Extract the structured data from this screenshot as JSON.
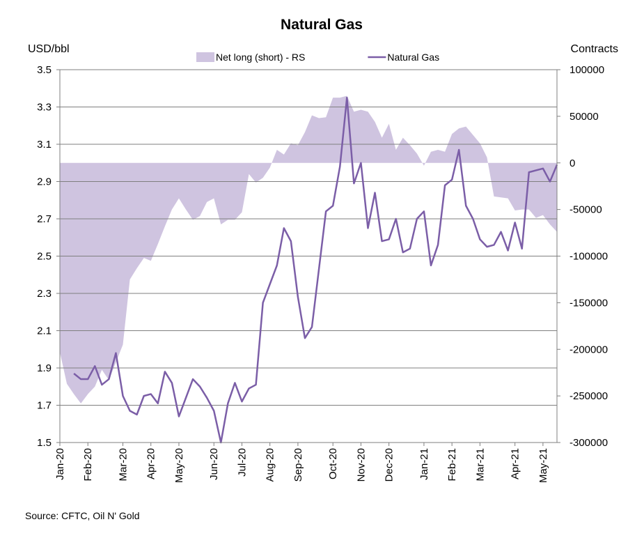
{
  "chart_data": {
    "type": "line",
    "title": "Natural Gas",
    "y_label": "USD/bbl",
    "y2_label": "Contracts",
    "source": "Source: CFTC, Oil N' Gold",
    "categories": [
      "Jan-20",
      null,
      null,
      null,
      "Feb-20",
      null,
      null,
      null,
      null,
      "Mar-20",
      null,
      null,
      null,
      "Apr-20",
      null,
      null,
      null,
      "May-20",
      null,
      null,
      null,
      null,
      "Jun-20",
      null,
      null,
      null,
      "Jul-20",
      null,
      null,
      null,
      "Aug-20",
      null,
      null,
      null,
      "Sep-20",
      null,
      null,
      null,
      null,
      "Oct-20",
      null,
      null,
      null,
      "Nov-20",
      null,
      null,
      null,
      "Dec-20",
      null,
      null,
      null,
      null,
      "Jan-21",
      null,
      null,
      null,
      "Feb-21",
      null,
      null,
      null,
      "Mar-21",
      null,
      null,
      null,
      null,
      "Apr-21",
      null,
      null,
      null,
      "May-21",
      null,
      null
    ],
    "series": [
      {
        "name": "Net long (short) - RS",
        "type": "area",
        "axis": "y2",
        "color": "#cfc4e0",
        "values": [
          -203000,
          -237000,
          -248000,
          -258000,
          -248000,
          -240000,
          -222000,
          -233000,
          -214000,
          -195000,
          -125000,
          -113000,
          -102000,
          -105000,
          -87000,
          -68000,
          -50000,
          -38000,
          -50000,
          -61000,
          -57000,
          -42000,
          -38000,
          -66000,
          -61000,
          -61000,
          -53000,
          -12000,
          -21000,
          -16000,
          -5000,
          14000,
          9000,
          21000,
          19000,
          33000,
          51000,
          48000,
          49000,
          70000,
          70000,
          72000,
          55000,
          57000,
          55000,
          44000,
          27000,
          42000,
          14000,
          27000,
          19000,
          10000,
          -3000,
          12000,
          14000,
          12000,
          31000,
          37000,
          39000,
          30000,
          21000,
          6000,
          -36000,
          -37000,
          -38000,
          -51000,
          -50000,
          -50000,
          -59000,
          -56000,
          -66000,
          -74000
        ]
      },
      {
        "name": "Natural Gas",
        "type": "line",
        "color": "#7b5ea7",
        "values": [
          null,
          null,
          1.87,
          1.84,
          1.84,
          1.91,
          1.81,
          1.84,
          1.98,
          1.75,
          1.67,
          1.65,
          1.75,
          1.76,
          1.71,
          1.88,
          1.82,
          1.64,
          1.74,
          1.84,
          1.8,
          1.74,
          1.67,
          1.5,
          1.71,
          1.82,
          1.72,
          1.79,
          1.81,
          2.25,
          2.35,
          2.45,
          2.65,
          2.58,
          2.28,
          2.06,
          2.12,
          2.43,
          2.74,
          2.77,
          2.98,
          3.35,
          2.89,
          3.0,
          2.65,
          2.84,
          2.58,
          2.59,
          2.7,
          2.52,
          2.54,
          2.7,
          2.74,
          2.45,
          2.56,
          2.88,
          2.91,
          3.07,
          2.77,
          2.7,
          2.59,
          2.55,
          2.56,
          2.63,
          2.53,
          2.68,
          2.54,
          2.95,
          2.96,
          2.97,
          2.9,
          2.99
        ]
      }
    ],
    "ylim": [
      1.5,
      3.5
    ],
    "yticks": [
      1.5,
      1.7,
      1.9,
      2.1,
      2.3,
      2.5,
      2.7,
      2.9,
      3.1,
      3.3,
      3.5
    ],
    "y2lim": [
      -300000,
      100000
    ],
    "y2ticks": [
      -300000,
      -250000,
      -200000,
      -150000,
      -100000,
      -50000,
      0,
      50000,
      100000
    ],
    "grid": true
  }
}
